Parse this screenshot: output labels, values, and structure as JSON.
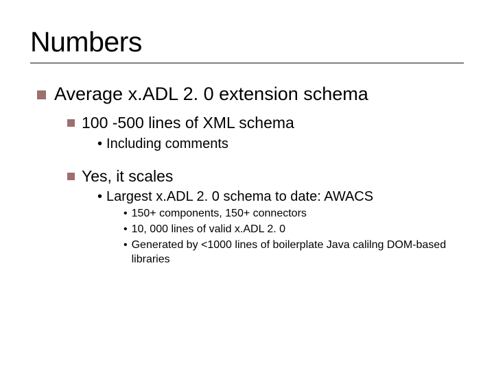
{
  "slide": {
    "title": "Numbers",
    "title_fontsize": 41,
    "rule_color": "#808080",
    "background_color": "#ffffff",
    "text_color": "#000000",
    "square_bullet_color": "#9d6f6f",
    "font_family": "Verdana",
    "lvl1": {
      "text": "Average x.ADL 2. 0 extension schema",
      "fontsize": 27
    },
    "lvl2a": {
      "text": "100 -500 lines of XML schema",
      "fontsize": 23
    },
    "lvl3a": {
      "text": "Including comments",
      "fontsize": 20
    },
    "lvl2b": {
      "text": "Yes, it scales",
      "fontsize": 23
    },
    "lvl3b": {
      "text": "Largest x.ADL 2. 0 schema to date: AWACS",
      "fontsize": 20
    },
    "lvl4a": {
      "text": "150+ components, 150+ connectors",
      "fontsize": 16
    },
    "lvl4b": {
      "text": "10, 000 lines of valid x.ADL 2. 0",
      "fontsize": 16
    },
    "lvl4c": {
      "text": "Generated by <1000 lines of boilerplate Java calilng DOM-based libraries",
      "fontsize": 16
    }
  }
}
